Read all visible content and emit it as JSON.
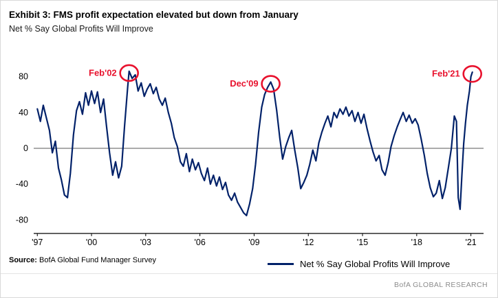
{
  "header": {
    "title": "Exhibit 3: FMS profit expectation elevated but down from January",
    "subtitle": "Net % Say Global Profits Will Improve"
  },
  "footer": {
    "source_label": "Source:",
    "source_text": " BofA Global Fund Manager Survey",
    "brand": "BofA GLOBAL RESEARCH"
  },
  "chart_data": {
    "type": "line",
    "title": "Net % Say Global Profits Will Improve",
    "xlabel": "",
    "ylabel": "Net % Say Global Profits Will Improve",
    "xlim": [
      1996.8,
      2021.7
    ],
    "ylim": [
      -95,
      95
    ],
    "grid": false,
    "zero_line": true,
    "x_ticks": [
      1997,
      2000,
      2003,
      2006,
      2009,
      2012,
      2015,
      2018,
      2021
    ],
    "x_tick_labels": [
      "'97",
      "'00",
      "'03",
      "'06",
      "'09",
      "'12",
      "'15",
      "'18",
      "'21"
    ],
    "y_ticks": [
      -80,
      -40,
      0,
      40,
      80
    ],
    "legend": {
      "label": "Net % Say Global Profits Will Improve",
      "position": "bottom-right"
    },
    "series": [
      {
        "name": "Net % Say Global Profits Will Improve",
        "color": "#012169",
        "points": [
          [
            1997.0,
            44
          ],
          [
            1997.17,
            30
          ],
          [
            1997.33,
            48
          ],
          [
            1997.5,
            34
          ],
          [
            1997.67,
            20
          ],
          [
            1997.83,
            -5
          ],
          [
            1998.0,
            8
          ],
          [
            1998.17,
            -22
          ],
          [
            1998.33,
            -35
          ],
          [
            1998.5,
            -52
          ],
          [
            1998.67,
            -55
          ],
          [
            1998.83,
            -28
          ],
          [
            1999.0,
            15
          ],
          [
            1999.17,
            42
          ],
          [
            1999.33,
            52
          ],
          [
            1999.5,
            38
          ],
          [
            1999.67,
            62
          ],
          [
            1999.83,
            48
          ],
          [
            2000.0,
            64
          ],
          [
            2000.17,
            50
          ],
          [
            2000.33,
            63
          ],
          [
            2000.5,
            40
          ],
          [
            2000.67,
            55
          ],
          [
            2000.83,
            25
          ],
          [
            2001.0,
            -5
          ],
          [
            2001.17,
            -30
          ],
          [
            2001.33,
            -15
          ],
          [
            2001.5,
            -33
          ],
          [
            2001.67,
            -20
          ],
          [
            2001.83,
            25
          ],
          [
            2002.0,
            68
          ],
          [
            2002.08,
            86
          ],
          [
            2002.25,
            78
          ],
          [
            2002.42,
            82
          ],
          [
            2002.58,
            64
          ],
          [
            2002.75,
            73
          ],
          [
            2002.92,
            58
          ],
          [
            2003.08,
            66
          ],
          [
            2003.25,
            72
          ],
          [
            2003.42,
            61
          ],
          [
            2003.58,
            68
          ],
          [
            2003.75,
            55
          ],
          [
            2003.92,
            48
          ],
          [
            2004.08,
            56
          ],
          [
            2004.25,
            40
          ],
          [
            2004.42,
            28
          ],
          [
            2004.58,
            12
          ],
          [
            2004.75,
            2
          ],
          [
            2004.92,
            -15
          ],
          [
            2005.08,
            -20
          ],
          [
            2005.25,
            -6
          ],
          [
            2005.42,
            -26
          ],
          [
            2005.58,
            -12
          ],
          [
            2005.75,
            -24
          ],
          [
            2005.92,
            -16
          ],
          [
            2006.08,
            -28
          ],
          [
            2006.25,
            -36
          ],
          [
            2006.42,
            -22
          ],
          [
            2006.58,
            -40
          ],
          [
            2006.75,
            -30
          ],
          [
            2006.92,
            -42
          ],
          [
            2007.08,
            -32
          ],
          [
            2007.25,
            -46
          ],
          [
            2007.42,
            -38
          ],
          [
            2007.58,
            -52
          ],
          [
            2007.75,
            -58
          ],
          [
            2007.92,
            -50
          ],
          [
            2008.08,
            -60
          ],
          [
            2008.25,
            -66
          ],
          [
            2008.42,
            -72
          ],
          [
            2008.58,
            -75
          ],
          [
            2008.75,
            -62
          ],
          [
            2008.92,
            -45
          ],
          [
            2009.08,
            -18
          ],
          [
            2009.25,
            18
          ],
          [
            2009.42,
            46
          ],
          [
            2009.58,
            60
          ],
          [
            2009.75,
            68
          ],
          [
            2009.92,
            74
          ],
          [
            2010.08,
            66
          ],
          [
            2010.25,
            42
          ],
          [
            2010.42,
            12
          ],
          [
            2010.58,
            -12
          ],
          [
            2010.75,
            2
          ],
          [
            2010.92,
            12
          ],
          [
            2011.08,
            20
          ],
          [
            2011.25,
            -2
          ],
          [
            2011.42,
            -22
          ],
          [
            2011.58,
            -45
          ],
          [
            2011.75,
            -38
          ],
          [
            2011.92,
            -30
          ],
          [
            2012.08,
            -18
          ],
          [
            2012.25,
            -2
          ],
          [
            2012.42,
            -14
          ],
          [
            2012.58,
            6
          ],
          [
            2012.75,
            18
          ],
          [
            2012.92,
            28
          ],
          [
            2013.08,
            36
          ],
          [
            2013.25,
            24
          ],
          [
            2013.42,
            40
          ],
          [
            2013.58,
            34
          ],
          [
            2013.75,
            44
          ],
          [
            2013.92,
            38
          ],
          [
            2014.08,
            46
          ],
          [
            2014.25,
            36
          ],
          [
            2014.42,
            42
          ],
          [
            2014.58,
            30
          ],
          [
            2014.75,
            40
          ],
          [
            2014.92,
            28
          ],
          [
            2015.08,
            38
          ],
          [
            2015.25,
            22
          ],
          [
            2015.42,
            8
          ],
          [
            2015.58,
            -4
          ],
          [
            2015.75,
            -14
          ],
          [
            2015.92,
            -8
          ],
          [
            2016.08,
            -24
          ],
          [
            2016.25,
            -30
          ],
          [
            2016.42,
            -16
          ],
          [
            2016.58,
            2
          ],
          [
            2016.75,
            14
          ],
          [
            2016.92,
            24
          ],
          [
            2017.08,
            32
          ],
          [
            2017.25,
            40
          ],
          [
            2017.42,
            30
          ],
          [
            2017.58,
            37
          ],
          [
            2017.75,
            28
          ],
          [
            2017.92,
            33
          ],
          [
            2018.08,
            26
          ],
          [
            2018.25,
            10
          ],
          [
            2018.42,
            -8
          ],
          [
            2018.58,
            -28
          ],
          [
            2018.75,
            -44
          ],
          [
            2018.92,
            -54
          ],
          [
            2019.08,
            -50
          ],
          [
            2019.25,
            -36
          ],
          [
            2019.42,
            -56
          ],
          [
            2019.58,
            -44
          ],
          [
            2019.75,
            -22
          ],
          [
            2019.92,
            0
          ],
          [
            2020.08,
            36
          ],
          [
            2020.2,
            30
          ],
          [
            2020.3,
            -55
          ],
          [
            2020.4,
            -68
          ],
          [
            2020.5,
            -30
          ],
          [
            2020.6,
            5
          ],
          [
            2020.7,
            28
          ],
          [
            2020.8,
            48
          ],
          [
            2020.92,
            64
          ],
          [
            2021.0,
            80
          ],
          [
            2021.08,
            85
          ]
        ]
      }
    ],
    "annotations": [
      {
        "label": "Feb'02",
        "x": 2002.08,
        "y": 84,
        "color": "#e8112d"
      },
      {
        "label": "Dec'09",
        "x": 2009.92,
        "y": 72,
        "color": "#e8112d"
      },
      {
        "label": "Feb'21",
        "x": 2021.08,
        "y": 83,
        "color": "#e8112d"
      }
    ]
  }
}
